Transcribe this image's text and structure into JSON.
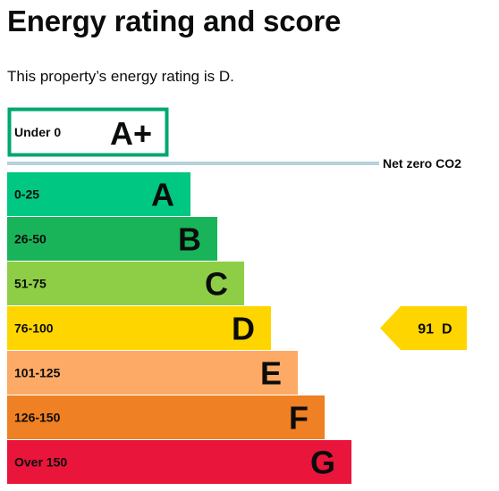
{
  "page": {
    "title": "Energy rating and score",
    "intro": "This property’s energy rating is D."
  },
  "chart_data": {
    "type": "bar",
    "special_band": {
      "range": "Under 0",
      "letter": "A+",
      "color": "#00a76f"
    },
    "net_zero_label": "Net zero CO2",
    "bands": [
      {
        "range": "0-25",
        "letter": "A",
        "color": "#00c781"
      },
      {
        "range": "26-50",
        "letter": "B",
        "color": "#19b459"
      },
      {
        "range": "51-75",
        "letter": "C",
        "color": "#8dce46"
      },
      {
        "range": "76-100",
        "letter": "D",
        "color": "#ffd500"
      },
      {
        "range": "101-125",
        "letter": "E",
        "color": "#fcaa65"
      },
      {
        "range": "126-150",
        "letter": "F",
        "color": "#ef8023"
      },
      {
        "range": "Over 150",
        "letter": "G",
        "color": "#e9153b"
      }
    ],
    "current": {
      "score": "91",
      "letter": "D",
      "band_index": 3,
      "color": "#ffd500"
    },
    "net_zero_line_color": "#b5d2dc"
  }
}
